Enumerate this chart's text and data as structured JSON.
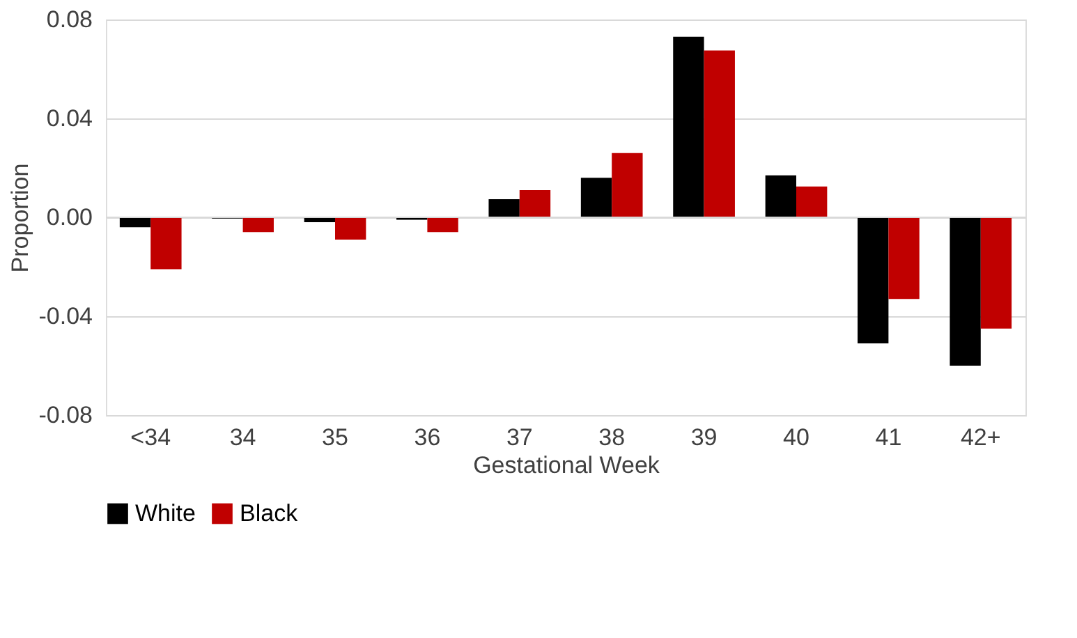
{
  "chart_data": {
    "type": "bar",
    "xlabel": "Gestational Week",
    "ylabel": "Proportion",
    "categories": [
      "<34",
      "34",
      "35",
      "36",
      "37",
      "38",
      "39",
      "40",
      "41",
      "42+"
    ],
    "series": [
      {
        "name": "White",
        "color": "#000000",
        "values": [
          -0.004,
          -0.0005,
          -0.002,
          -0.001,
          0.0073,
          0.016,
          0.073,
          0.017,
          -0.051,
          -0.06
        ]
      },
      {
        "name": "Black",
        "color": "#c00000",
        "values": [
          -0.021,
          -0.006,
          -0.009,
          -0.006,
          0.011,
          0.026,
          0.0675,
          0.0125,
          -0.033,
          -0.045
        ]
      }
    ],
    "ylim": [
      -0.08,
      0.08
    ],
    "yticks": [
      {
        "value": -0.08,
        "label": "-0.08"
      },
      {
        "value": -0.04,
        "label": "-0.04"
      },
      {
        "value": 0,
        "label": "0.00"
      },
      {
        "value": 0.04,
        "label": "0.04"
      },
      {
        "value": 0.08,
        "label": "0.08"
      }
    ],
    "grid": "y",
    "legend": "bottom"
  }
}
